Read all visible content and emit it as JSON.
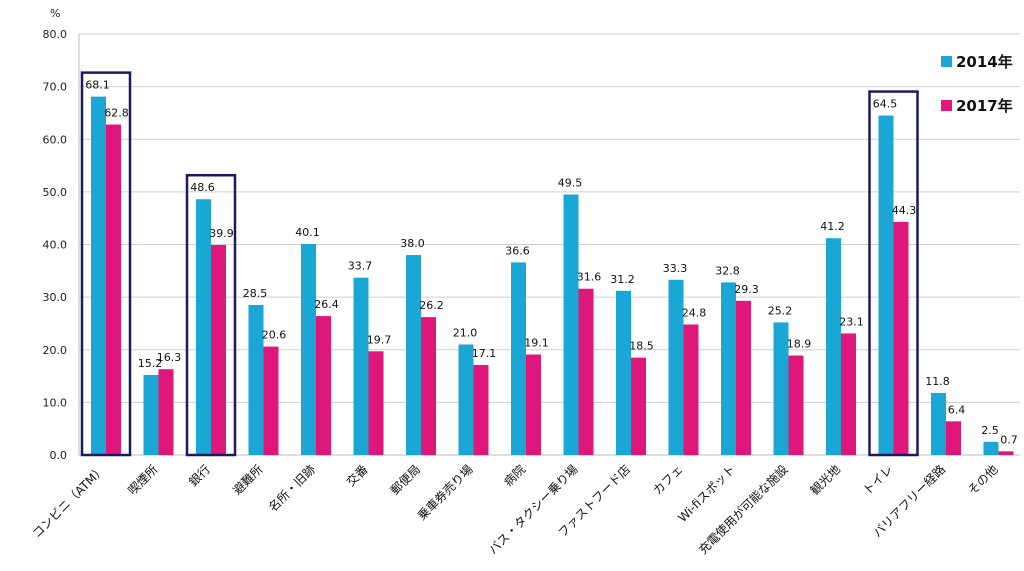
{
  "chart_data": {
    "type": "bar",
    "ylabel": "%",
    "ylim": [
      0,
      80
    ],
    "yticks": [
      "0.0",
      "10.0",
      "20.0",
      "30.0",
      "40.0",
      "50.0",
      "60.0",
      "70.0",
      "80.0"
    ],
    "grid": true,
    "legend_position": "top-right",
    "categories": [
      "コンビニ（ATM）",
      "喫煙所",
      "銀行",
      "避難所",
      "名所・旧跡",
      "交番",
      "郵便局",
      "乗車券売り場",
      "病院",
      "バス・タクシー乗り場",
      "ファストフード店",
      "カフェ",
      "Wi-fiスポット",
      "充電使用が可能な施設",
      "観光地",
      "トイレ",
      "バリアフリー経路",
      "その他"
    ],
    "series": [
      {
        "name": "2014年",
        "color": "#1aa7d6",
        "values": [
          68.1,
          15.2,
          48.6,
          28.5,
          40.1,
          33.7,
          38.0,
          21.0,
          36.6,
          49.5,
          31.2,
          33.3,
          32.8,
          25.2,
          41.2,
          64.5,
          11.8,
          2.5
        ]
      },
      {
        "name": "2017年",
        "color": "#e0177a",
        "values": [
          62.8,
          16.3,
          39.9,
          20.6,
          26.4,
          19.7,
          26.2,
          17.1,
          19.1,
          31.6,
          18.5,
          24.8,
          29.3,
          18.9,
          23.1,
          44.3,
          6.4,
          0.7
        ]
      }
    ],
    "highlighted_categories": [
      "コンビニ（ATM）",
      "銀行",
      "トイレ"
    ],
    "highlight_color": "#1a1a5e"
  }
}
